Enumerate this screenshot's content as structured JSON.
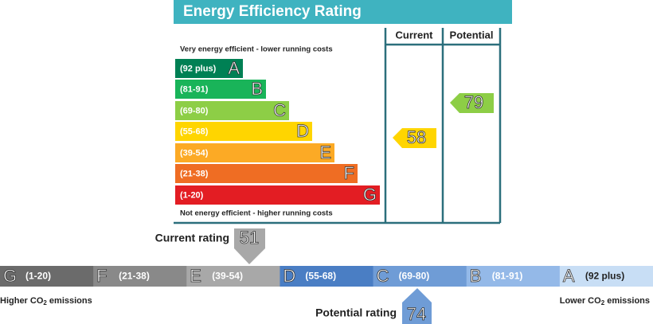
{
  "title": "Energy Efficiency Rating",
  "columns": [
    "Current",
    "Potential"
  ],
  "top_note": "Very energy efficient - lower running costs",
  "bottom_note": "Not energy efficient - higher running costs",
  "bands": [
    {
      "range": "(92 plus)",
      "letter": "A",
      "color": "#008054"
    },
    {
      "range": "(81-91)",
      "letter": "B",
      "color": "#19b459"
    },
    {
      "range": "(69-80)",
      "letter": "C",
      "color": "#8dce46"
    },
    {
      "range": "(55-68)",
      "letter": "D",
      "color": "#ffd500"
    },
    {
      "range": "(39-54)",
      "letter": "E",
      "color": "#fcaa25"
    },
    {
      "range": "(21-38)",
      "letter": "F",
      "color": "#ef6d23"
    },
    {
      "range": "(1-20)",
      "letter": "G",
      "color": "#e31d23"
    }
  ],
  "current": 58,
  "potential": 79,
  "co2": {
    "current_label": "Current rating",
    "current": 51,
    "potential_label": "Potential rating",
    "potential": 74,
    "left_label": "Higher CO",
    "right_label": "Lower CO",
    "subscript": "2",
    "suffix": " emissions",
    "bands": [
      {
        "letter": "G",
        "range": "(1-20)",
        "color": "#6b6b6b"
      },
      {
        "letter": "F",
        "range": "(21-38)",
        "color": "#898989"
      },
      {
        "letter": "E",
        "range": "(39-54)",
        "color": "#a8a8a8"
      },
      {
        "letter": "D",
        "range": "(55-68)",
        "color": "#4a7ec4"
      },
      {
        "letter": "C",
        "range": "(69-80)",
        "color": "#6f9cd6"
      },
      {
        "letter": "B",
        "range": "(81-91)",
        "color": "#94b9e8"
      },
      {
        "letter": "A",
        "range": "(92 plus)",
        "color": "#c8def5"
      }
    ]
  }
}
